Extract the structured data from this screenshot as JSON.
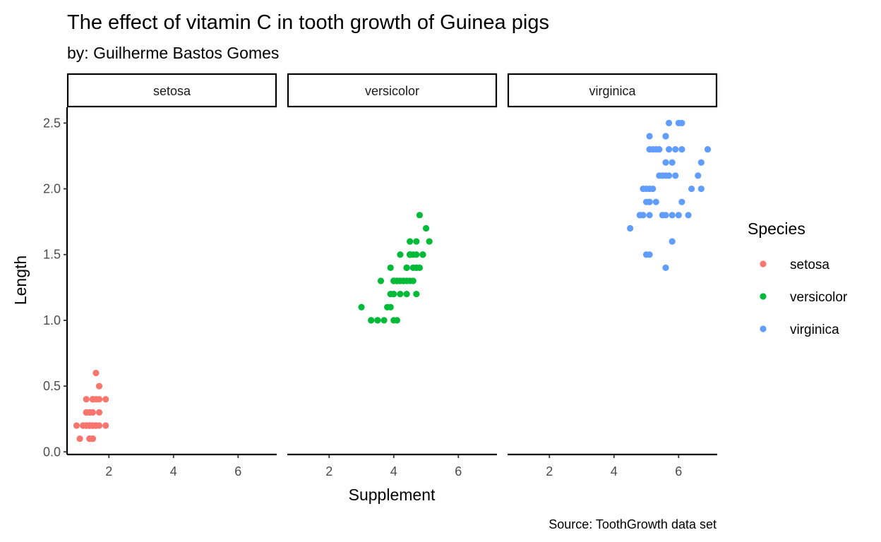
{
  "chart_data": {
    "type": "scatter",
    "title": "The effect of vitamin C in tooth growth of Guinea pigs",
    "subtitle": "by: Guilherme Bastos Gomes",
    "caption": "Source: ToothGrowth data set",
    "xlabel": "Supplement",
    "ylabel": "Length",
    "xlim": [
      0.705,
      7.195
    ],
    "ylim": [
      -0.02,
      2.62
    ],
    "x_ticks": [
      2,
      4,
      6
    ],
    "x_tick_labels": [
      "2",
      "4",
      "6"
    ],
    "y_ticks": [
      0.0,
      0.5,
      1.0,
      1.5,
      2.0,
      2.5
    ],
    "y_tick_labels": [
      "0.0",
      "0.5",
      "1.0",
      "1.5",
      "2.0",
      "2.5"
    ],
    "grid": false,
    "facet_by": "Species",
    "legend": {
      "title": "Species",
      "placement": "right",
      "entries": [
        {
          "label": "setosa",
          "color": "#F8766D"
        },
        {
          "label": "versicolor",
          "color": "#00BA38"
        },
        {
          "label": "virginica",
          "color": "#619CFF"
        }
      ]
    },
    "series": [
      {
        "name": "setosa",
        "color": "#F8766D",
        "x": [
          1.4,
          1.4,
          1.3,
          1.5,
          1.4,
          1.7,
          1.4,
          1.5,
          1.4,
          1.5,
          1.5,
          1.6,
          1.4,
          1.1,
          1.2,
          1.5,
          1.3,
          1.4,
          1.7,
          1.5,
          1.7,
          1.5,
          1.0,
          1.7,
          1.9,
          1.6,
          1.6,
          1.5,
          1.4,
          1.6,
          1.6,
          1.5,
          1.5,
          1.4,
          1.5,
          1.2,
          1.3,
          1.4,
          1.3,
          1.5,
          1.3,
          1.3,
          1.3,
          1.6,
          1.9,
          1.4,
          1.6,
          1.4,
          1.5,
          1.4
        ],
        "y": [
          0.2,
          0.2,
          0.2,
          0.2,
          0.2,
          0.4,
          0.3,
          0.2,
          0.2,
          0.1,
          0.2,
          0.2,
          0.1,
          0.1,
          0.2,
          0.4,
          0.4,
          0.3,
          0.3,
          0.3,
          0.2,
          0.4,
          0.2,
          0.5,
          0.2,
          0.2,
          0.4,
          0.2,
          0.2,
          0.2,
          0.2,
          0.4,
          0.1,
          0.2,
          0.2,
          0.2,
          0.2,
          0.1,
          0.2,
          0.2,
          0.3,
          0.3,
          0.2,
          0.6,
          0.4,
          0.3,
          0.2,
          0.2,
          0.2,
          0.2
        ]
      },
      {
        "name": "versicolor",
        "color": "#00BA38",
        "x": [
          4.7,
          4.5,
          4.9,
          4.0,
          4.6,
          4.5,
          4.7,
          3.3,
          4.6,
          3.9,
          3.5,
          4.2,
          4.0,
          4.7,
          3.6,
          4.4,
          4.5,
          4.1,
          4.5,
          3.9,
          4.8,
          4.0,
          4.9,
          4.7,
          4.3,
          4.4,
          4.8,
          5.0,
          4.5,
          3.5,
          3.8,
          3.7,
          3.9,
          5.1,
          4.5,
          4.5,
          4.7,
          4.4,
          4.1,
          4.0,
          4.4,
          4.6,
          4.0,
          3.3,
          4.2,
          4.2,
          4.2,
          4.3,
          3.0,
          4.1
        ],
        "y": [
          1.4,
          1.5,
          1.5,
          1.3,
          1.5,
          1.3,
          1.6,
          1.0,
          1.3,
          1.4,
          1.0,
          1.5,
          1.0,
          1.4,
          1.3,
          1.4,
          1.5,
          1.0,
          1.5,
          1.1,
          1.8,
          1.3,
          1.5,
          1.2,
          1.3,
          1.4,
          1.4,
          1.7,
          1.5,
          1.0,
          1.1,
          1.0,
          1.2,
          1.6,
          1.5,
          1.6,
          1.5,
          1.3,
          1.3,
          1.3,
          1.2,
          1.4,
          1.2,
          1.0,
          1.3,
          1.2,
          1.3,
          1.3,
          1.1,
          1.3
        ]
      },
      {
        "name": "virginica",
        "color": "#619CFF",
        "x": [
          6.0,
          5.1,
          5.9,
          5.6,
          5.8,
          6.6,
          4.5,
          6.3,
          5.8,
          6.1,
          5.1,
          5.3,
          5.5,
          5.0,
          5.1,
          5.3,
          5.5,
          6.7,
          6.9,
          5.0,
          5.7,
          4.9,
          6.7,
          4.9,
          5.7,
          6.0,
          4.8,
          4.9,
          5.6,
          5.8,
          6.1,
          6.4,
          5.6,
          5.1,
          5.6,
          6.1,
          5.6,
          5.5,
          4.8,
          5.4,
          5.6,
          5.1,
          5.1,
          5.9,
          5.7,
          5.2,
          5.0,
          5.2,
          5.4,
          5.1
        ],
        "y": [
          2.5,
          1.9,
          2.1,
          1.8,
          2.2,
          2.1,
          1.7,
          1.8,
          1.8,
          2.5,
          2.0,
          1.9,
          2.1,
          2.0,
          2.4,
          2.3,
          1.8,
          2.2,
          2.3,
          1.5,
          2.3,
          2.0,
          2.0,
          1.8,
          2.1,
          1.8,
          1.8,
          1.8,
          2.1,
          1.6,
          1.9,
          2.0,
          2.2,
          1.5,
          1.4,
          2.3,
          2.4,
          1.8,
          1.8,
          2.1,
          2.4,
          2.3,
          1.9,
          2.3,
          2.5,
          2.3,
          1.9,
          2.0,
          2.3,
          1.8
        ]
      }
    ]
  }
}
